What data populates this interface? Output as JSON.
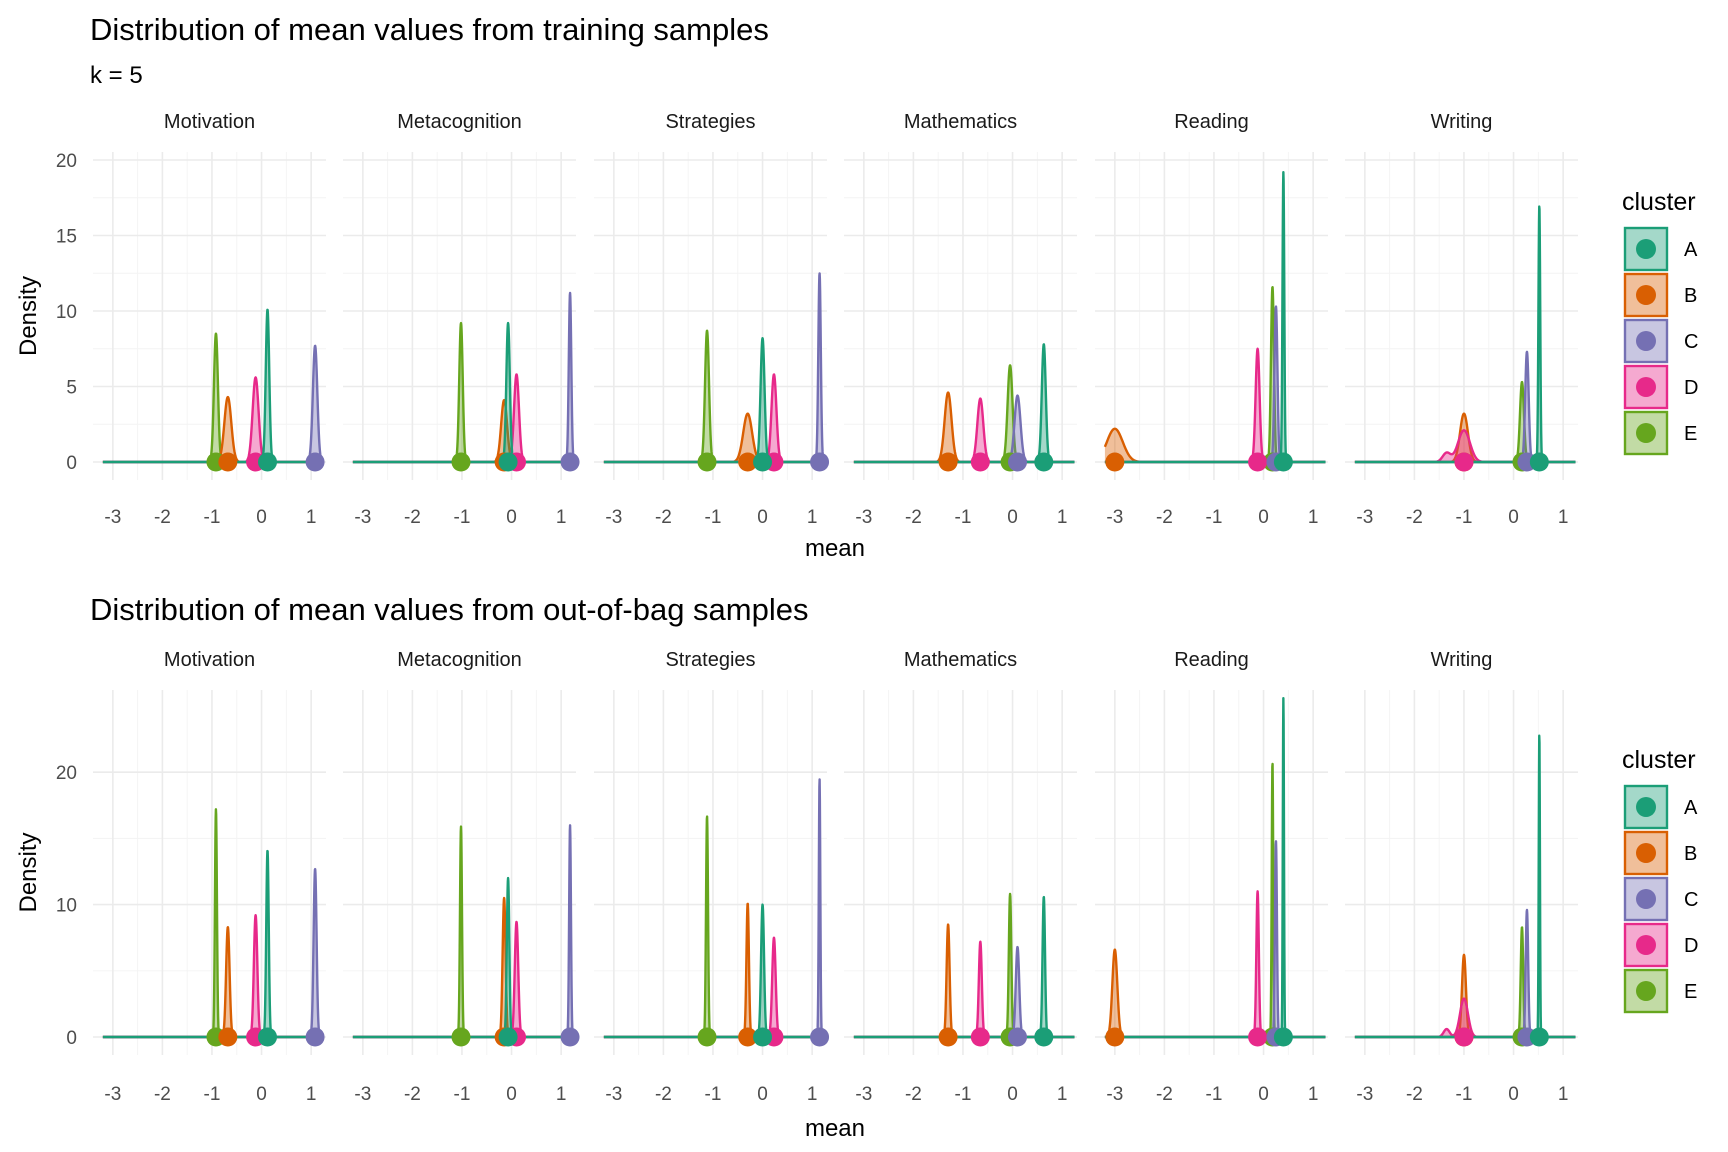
{
  "chart_data": [
    {
      "type": "area",
      "title": "Distribution of mean values from training samples",
      "subtitle": "k = 5",
      "xlabel": "mean",
      "ylabel": "Density",
      "xlim": [
        -3.4,
        1.3
      ],
      "ylim": [
        0,
        20
      ],
      "x_ticks": [
        -3,
        -2,
        -1,
        0,
        1
      ],
      "y_ticks": [
        0,
        5,
        10,
        15,
        20
      ],
      "grid": true,
      "facets": [
        {
          "label": "Motivation",
          "series": [
            {
              "name": "A",
              "peaks": [
                {
                  "mean": 0.12,
                  "height": 10.1,
                  "sd": 0.035
                }
              ]
            },
            {
              "name": "B",
              "peaks": [
                {
                  "mean": -0.68,
                  "height": 4.3,
                  "sd": 0.07
                }
              ]
            },
            {
              "name": "C",
              "peaks": [
                {
                  "mean": 1.08,
                  "height": 7.7,
                  "sd": 0.045
                }
              ]
            },
            {
              "name": "D",
              "peaks": [
                {
                  "mean": -0.12,
                  "height": 5.6,
                  "sd": 0.06
                }
              ]
            },
            {
              "name": "E",
              "peaks": [
                {
                  "mean": -0.92,
                  "height": 8.5,
                  "sd": 0.04
                }
              ]
            }
          ]
        },
        {
          "label": "Metacognition",
          "series": [
            {
              "name": "A",
              "peaks": [
                {
                  "mean": -0.07,
                  "height": 9.2,
                  "sd": 0.035
                }
              ]
            },
            {
              "name": "B",
              "peaks": [
                {
                  "mean": -0.15,
                  "height": 4.1,
                  "sd": 0.06
                }
              ]
            },
            {
              "name": "C",
              "peaks": [
                {
                  "mean": 1.18,
                  "height": 11.2,
                  "sd": 0.025
                }
              ]
            },
            {
              "name": "D",
              "peaks": [
                {
                  "mean": 0.1,
                  "height": 5.8,
                  "sd": 0.05
                }
              ]
            },
            {
              "name": "E",
              "peaks": [
                {
                  "mean": -1.02,
                  "height": 9.2,
                  "sd": 0.035
                }
              ]
            }
          ]
        },
        {
          "label": "Strategies",
          "series": [
            {
              "name": "A",
              "peaks": [
                {
                  "mean": 0.0,
                  "height": 8.2,
                  "sd": 0.04
                }
              ]
            },
            {
              "name": "B",
              "peaks": [
                {
                  "mean": -0.3,
                  "height": 3.2,
                  "sd": 0.09
                }
              ]
            },
            {
              "name": "C",
              "peaks": [
                {
                  "mean": 1.15,
                  "height": 12.5,
                  "sd": 0.025
                }
              ]
            },
            {
              "name": "D",
              "peaks": [
                {
                  "mean": 0.23,
                  "height": 5.8,
                  "sd": 0.05
                }
              ]
            },
            {
              "name": "E",
              "peaks": [
                {
                  "mean": -1.12,
                  "height": 8.7,
                  "sd": 0.04
                }
              ]
            }
          ]
        },
        {
          "label": "Mathematics",
          "series": [
            {
              "name": "A",
              "peaks": [
                {
                  "mean": 0.63,
                  "height": 7.8,
                  "sd": 0.04
                }
              ]
            },
            {
              "name": "B",
              "peaks": [
                {
                  "mean": -1.3,
                  "height": 4.6,
                  "sd": 0.07
                }
              ]
            },
            {
              "name": "C",
              "peaks": [
                {
                  "mean": 0.1,
                  "height": 4.4,
                  "sd": 0.06
                }
              ]
            },
            {
              "name": "D",
              "peaks": [
                {
                  "mean": -0.65,
                  "height": 4.2,
                  "sd": 0.06
                }
              ]
            },
            {
              "name": "E",
              "peaks": [
                {
                  "mean": -0.05,
                  "height": 6.4,
                  "sd": 0.05
                }
              ]
            }
          ]
        },
        {
          "label": "Reading",
          "series": [
            {
              "name": "A",
              "peaks": [
                {
                  "mean": 0.4,
                  "height": 19.2,
                  "sd": 0.018
                }
              ]
            },
            {
              "name": "B",
              "peaks": [
                {
                  "mean": -3.0,
                  "height": 2.2,
                  "sd": 0.16
                }
              ]
            },
            {
              "name": "C",
              "peaks": [
                {
                  "mean": 0.25,
                  "height": 10.3,
                  "sd": 0.03
                }
              ]
            },
            {
              "name": "D",
              "peaks": [
                {
                  "mean": -0.12,
                  "height": 7.5,
                  "sd": 0.04
                }
              ]
            },
            {
              "name": "E",
              "peaks": [
                {
                  "mean": 0.18,
                  "height": 11.6,
                  "sd": 0.03
                }
              ]
            }
          ]
        },
        {
          "label": "Writing",
          "series": [
            {
              "name": "A",
              "peaks": [
                {
                  "mean": 0.52,
                  "height": 17.0,
                  "sd": 0.018
                }
              ]
            },
            {
              "name": "B",
              "peaks": [
                {
                  "mean": -1.0,
                  "height": 3.2,
                  "sd": 0.08
                }
              ]
            },
            {
              "name": "C",
              "peaks": [
                {
                  "mean": 0.27,
                  "height": 7.3,
                  "sd": 0.035
                }
              ]
            },
            {
              "name": "D",
              "peaks": [
                {
                  "mean": -1.0,
                  "height": 2.1,
                  "sd": 0.12
                },
                {
                  "mean": -1.35,
                  "height": 0.6,
                  "sd": 0.08
                }
              ]
            },
            {
              "name": "E",
              "peaks": [
                {
                  "mean": 0.17,
                  "height": 5.3,
                  "sd": 0.04
                }
              ]
            }
          ]
        }
      ]
    },
    {
      "type": "area",
      "title": "Distribution of mean values from out-of-bag samples",
      "xlabel": "mean",
      "ylabel": "Density",
      "xlim": [
        -3.4,
        1.3
      ],
      "ylim": [
        0,
        25.6
      ],
      "x_ticks": [
        -3,
        -2,
        -1,
        0,
        1
      ],
      "y_ticks": [
        0,
        10,
        20
      ],
      "grid": true,
      "facets": [
        {
          "label": "Motivation",
          "series": [
            {
              "name": "A",
              "peaks": [
                {
                  "mean": 0.12,
                  "height": 14.1,
                  "sd": 0.025
                }
              ]
            },
            {
              "name": "B",
              "peaks": [
                {
                  "mean": -0.68,
                  "height": 8.3,
                  "sd": 0.035
                }
              ]
            },
            {
              "name": "C",
              "peaks": [
                {
                  "mean": 1.08,
                  "height": 12.7,
                  "sd": 0.03
                }
              ]
            },
            {
              "name": "D",
              "peaks": [
                {
                  "mean": -0.12,
                  "height": 9.2,
                  "sd": 0.035
                }
              ]
            },
            {
              "name": "E",
              "peaks": [
                {
                  "mean": -0.92,
                  "height": 17.2,
                  "sd": 0.02
                }
              ]
            }
          ]
        },
        {
          "label": "Metacognition",
          "series": [
            {
              "name": "A",
              "peaks": [
                {
                  "mean": -0.07,
                  "height": 12.0,
                  "sd": 0.025
                }
              ]
            },
            {
              "name": "B",
              "peaks": [
                {
                  "mean": -0.15,
                  "height": 10.5,
                  "sd": 0.03
                }
              ]
            },
            {
              "name": "C",
              "peaks": [
                {
                  "mean": 1.18,
                  "height": 16.0,
                  "sd": 0.018
                }
              ]
            },
            {
              "name": "D",
              "peaks": [
                {
                  "mean": 0.1,
                  "height": 8.7,
                  "sd": 0.035
                }
              ]
            },
            {
              "name": "E",
              "peaks": [
                {
                  "mean": -1.02,
                  "height": 15.9,
                  "sd": 0.02
                }
              ]
            }
          ]
        },
        {
          "label": "Strategies",
          "series": [
            {
              "name": "A",
              "peaks": [
                {
                  "mean": 0.0,
                  "height": 10.0,
                  "sd": 0.03
                }
              ]
            },
            {
              "name": "B",
              "peaks": [
                {
                  "mean": -0.3,
                  "height": 10.1,
                  "sd": 0.025
                }
              ]
            },
            {
              "name": "C",
              "peaks": [
                {
                  "mean": 1.15,
                  "height": 19.5,
                  "sd": 0.015
                }
              ]
            },
            {
              "name": "D",
              "peaks": [
                {
                  "mean": 0.23,
                  "height": 7.5,
                  "sd": 0.035
                }
              ]
            },
            {
              "name": "E",
              "peaks": [
                {
                  "mean": -1.12,
                  "height": 16.7,
                  "sd": 0.02
                }
              ]
            }
          ]
        },
        {
          "label": "Mathematics",
          "series": [
            {
              "name": "A",
              "peaks": [
                {
                  "mean": 0.63,
                  "height": 10.6,
                  "sd": 0.025
                }
              ]
            },
            {
              "name": "B",
              "peaks": [
                {
                  "mean": -1.3,
                  "height": 8.5,
                  "sd": 0.03
                }
              ]
            },
            {
              "name": "C",
              "peaks": [
                {
                  "mean": 0.1,
                  "height": 6.8,
                  "sd": 0.035
                }
              ]
            },
            {
              "name": "D",
              "peaks": [
                {
                  "mean": -0.65,
                  "height": 7.2,
                  "sd": 0.03
                }
              ]
            },
            {
              "name": "E",
              "peaks": [
                {
                  "mean": -0.05,
                  "height": 10.8,
                  "sd": 0.025
                }
              ]
            }
          ]
        },
        {
          "label": "Reading",
          "series": [
            {
              "name": "A",
              "peaks": [
                {
                  "mean": 0.4,
                  "height": 25.6,
                  "sd": 0.012
                }
              ]
            },
            {
              "name": "B",
              "peaks": [
                {
                  "mean": -3.0,
                  "height": 6.6,
                  "sd": 0.05
                }
              ]
            },
            {
              "name": "C",
              "peaks": [
                {
                  "mean": 0.25,
                  "height": 14.8,
                  "sd": 0.02
                }
              ]
            },
            {
              "name": "D",
              "peaks": [
                {
                  "mean": -0.12,
                  "height": 11.0,
                  "sd": 0.025
                }
              ]
            },
            {
              "name": "E",
              "peaks": [
                {
                  "mean": 0.18,
                  "height": 20.8,
                  "sd": 0.015
                }
              ]
            }
          ]
        },
        {
          "label": "Writing",
          "series": [
            {
              "name": "A",
              "peaks": [
                {
                  "mean": 0.52,
                  "height": 23.0,
                  "sd": 0.012
                }
              ]
            },
            {
              "name": "B",
              "peaks": [
                {
                  "mean": -1.0,
                  "height": 6.2,
                  "sd": 0.04
                }
              ]
            },
            {
              "name": "C",
              "peaks": [
                {
                  "mean": 0.27,
                  "height": 9.6,
                  "sd": 0.025
                }
              ]
            },
            {
              "name": "D",
              "peaks": [
                {
                  "mean": -1.0,
                  "height": 2.9,
                  "sd": 0.08
                },
                {
                  "mean": -1.35,
                  "height": 0.6,
                  "sd": 0.06
                }
              ]
            },
            {
              "name": "E",
              "peaks": [
                {
                  "mean": 0.17,
                  "height": 8.3,
                  "sd": 0.025
                }
              ]
            }
          ]
        }
      ]
    }
  ],
  "legend": {
    "title": "cluster",
    "placement": "right",
    "items": [
      {
        "label": "A",
        "color": "#1B9E77"
      },
      {
        "label": "B",
        "color": "#D95F02"
      },
      {
        "label": "C",
        "color": "#7570B3"
      },
      {
        "label": "D",
        "color": "#E7298A"
      },
      {
        "label": "E",
        "color": "#66A61E"
      }
    ]
  }
}
